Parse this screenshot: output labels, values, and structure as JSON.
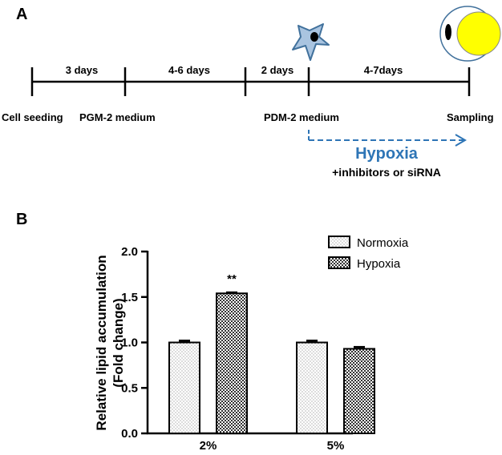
{
  "panel_a": {
    "label": "A",
    "durations": [
      "3 days",
      "4-6 days",
      "2 days",
      "4-7days"
    ],
    "stages": [
      "Cell seeding",
      "PGM-2 medium",
      "PDM-2 medium",
      "Sampling"
    ],
    "hypoxia_label": "Hypoxia",
    "treatment_label": "+inhibitors or siRNA",
    "colors": {
      "hypoxia": "#2e75b6",
      "cell_outline": "#41719c",
      "cell_fill": "#a9c4e0",
      "lipid": "#ffff00"
    }
  },
  "panel_b": {
    "label": "B"
  },
  "chart_data": {
    "type": "bar",
    "ylabel_line1": "Relative lipid accumulation",
    "ylabel_line2": "(Fold change)",
    "categories": [
      "2%",
      "5%"
    ],
    "series": [
      {
        "name": "Normoxia",
        "values": [
          1.0,
          1.0
        ],
        "errors": [
          0.02,
          0.02
        ],
        "pattern": "dots"
      },
      {
        "name": "Hypoxia",
        "values": [
          1.54,
          0.93
        ],
        "errors": [
          0.01,
          0.02
        ],
        "pattern": "crosshatch"
      }
    ],
    "significance": [
      "**",
      ""
    ],
    "ylim": [
      0,
      2.0
    ],
    "yticks": [
      "0.0",
      "0.5",
      "1.0",
      "1.5",
      "2.0"
    ],
    "legend_position": "top-right",
    "grid": false
  }
}
